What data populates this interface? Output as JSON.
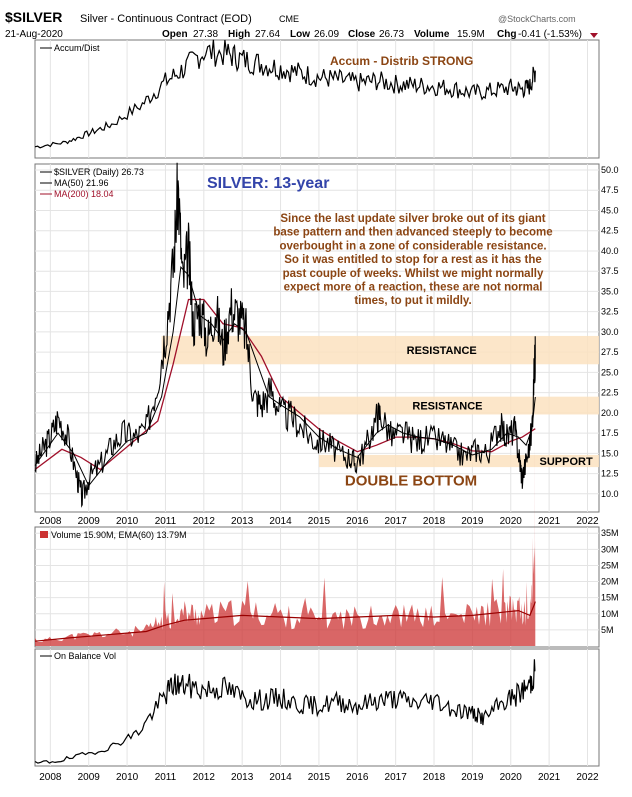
{
  "header": {
    "symbol": "$SILVER",
    "description": "Silver - Continuous Contract (EOD)",
    "exchange": "CME",
    "date": "21-Aug-2020",
    "open_label": "Open",
    "open": "27.38",
    "high_label": "High",
    "high": "27.64",
    "low_label": "Low",
    "low": "26.09",
    "close_label": "Close",
    "close": "26.73",
    "volume_label": "Volume",
    "volume": "15.9M",
    "chg_label": "Chg",
    "chg": "-0.41 (-1.53%)",
    "brand": "@StockCharts.com"
  },
  "colors": {
    "price": "#000000",
    "ma50": "#000000",
    "ma200": "#a0102a",
    "zone": "#fce2bf",
    "annotation": "#8b4513",
    "title": "#3344aa",
    "volume_fill": "#cc3333",
    "ema_line": "#990000",
    "grid": "#dddddd"
  },
  "chart_data": [
    {
      "type": "line",
      "panel": "accum_dist",
      "legend": "Accum/Dist",
      "annotation": "Accum - Distrib STRONG",
      "x": [
        2007.6,
        2008.4,
        2009.0,
        2009.6,
        2010.4,
        2011.0,
        2011.5,
        2012.0,
        2012.6,
        2013.0,
        2013.5,
        2014.0,
        2014.5,
        2015.0,
        2015.5,
        2016.0,
        2016.5,
        2017.0,
        2017.5,
        2018.0,
        2018.5,
        2019.0,
        2019.5,
        2020.0,
        2020.3,
        2020.5,
        2020.64
      ],
      "values": [
        10,
        14,
        22,
        30,
        48,
        68,
        80,
        95,
        93,
        88,
        84,
        80,
        76,
        72,
        70,
        67,
        69,
        66,
        65,
        64,
        62,
        58,
        60,
        63,
        61,
        64,
        78
      ]
    },
    {
      "type": "line",
      "panel": "price",
      "title": "SILVER: 13-year",
      "legend_price": "$SILVER (Daily) 26.73",
      "legend_ma50": "MA(50) 21.96",
      "legend_ma200": "MA(200) 18.04",
      "ylim": [
        8,
        50
      ],
      "y_ticks": [
        10.0,
        12.5,
        15.0,
        17.5,
        20.0,
        22.5,
        25.0,
        27.5,
        30.0,
        32.5,
        35.0,
        37.5,
        40.0,
        42.5,
        45.0,
        47.5,
        50.0
      ],
      "x_ticks": [
        "2008",
        "2009",
        "2010",
        "2011",
        "2012",
        "2013",
        "2014",
        "2015",
        "2016",
        "2017",
        "2018",
        "2019",
        "2020",
        "2021",
        "2022"
      ],
      "x": [
        2007.6,
        2007.8,
        2008.0,
        2008.2,
        2008.45,
        2008.7,
        2008.83,
        2009.0,
        2009.3,
        2009.6,
        2009.9,
        2010.2,
        2010.5,
        2010.8,
        2011.0,
        2011.2,
        2011.33,
        2011.45,
        2011.6,
        2011.72,
        2011.9,
        2012.1,
        2012.3,
        2012.5,
        2012.7,
        2012.9,
        2013.1,
        2013.3,
        2013.5,
        2013.75,
        2014.0,
        2014.3,
        2014.6,
        2014.9,
        2015.2,
        2015.5,
        2015.8,
        2015.95,
        2016.2,
        2016.5,
        2016.6,
        2016.9,
        2017.2,
        2017.5,
        2017.8,
        2018.2,
        2018.5,
        2018.8,
        2019.1,
        2019.4,
        2019.7,
        2019.9,
        2020.1,
        2020.22,
        2020.3,
        2020.45,
        2020.55,
        2020.62,
        2020.64
      ],
      "values": [
        13.5,
        15.5,
        17,
        19.5,
        17,
        12,
        9.5,
        12,
        13.5,
        16,
        17.5,
        17,
        18,
        24,
        30,
        38,
        48,
        36,
        40,
        31,
        33,
        29,
        33,
        28,
        33,
        32,
        30,
        22,
        21,
        23,
        20,
        19.5,
        18,
        16.5,
        16.5,
        15,
        14.5,
        13.8,
        15.5,
        19.5,
        20,
        17,
        17.5,
        16.5,
        16.8,
        16.6,
        15.5,
        14.6,
        15.5,
        15,
        18.5,
        17,
        18,
        14.5,
        12,
        15,
        18,
        26,
        26.73
      ]
    },
    {
      "type": "line",
      "panel": "price",
      "series_name": "MA(50)",
      "x": [
        2007.6,
        2008.2,
        2008.6,
        2009.0,
        2009.5,
        2010.0,
        2010.5,
        2010.9,
        2011.2,
        2011.4,
        2011.6,
        2011.9,
        2012.2,
        2012.5,
        2012.8,
        2013.1,
        2013.4,
        2013.7,
        2014.0,
        2014.5,
        2015.0,
        2015.5,
        2016.0,
        2016.5,
        2016.8,
        2017.2,
        2017.6,
        2018.0,
        2018.5,
        2019.0,
        2019.5,
        2019.9,
        2020.2,
        2020.4,
        2020.55,
        2020.64
      ],
      "values": [
        13.5,
        17.5,
        15,
        11,
        14,
        16.5,
        17.5,
        22,
        30,
        38,
        37,
        32,
        31,
        29,
        31,
        30,
        26,
        22,
        21,
        19.5,
        17,
        15.5,
        14.5,
        17.5,
        18.5,
        17.5,
        17,
        16.8,
        16,
        14.8,
        15.5,
        17.5,
        17,
        16,
        18,
        21.96
      ]
    },
    {
      "type": "line",
      "panel": "price",
      "series_name": "MA(200)",
      "x": [
        2007.6,
        2008.3,
        2008.8,
        2009.3,
        2009.8,
        2010.3,
        2010.8,
        2011.2,
        2011.6,
        2012.0,
        2012.5,
        2013.0,
        2013.5,
        2014.0,
        2014.5,
        2015.0,
        2015.5,
        2016.0,
        2016.5,
        2017.0,
        2017.5,
        2018.0,
        2018.5,
        2019.0,
        2019.5,
        2020.0,
        2020.3,
        2020.64
      ],
      "values": [
        13,
        15.5,
        14.5,
        13,
        15,
        17,
        19,
        26,
        34,
        34,
        31,
        30.5,
        27,
        22,
        20,
        18,
        16.5,
        15.2,
        16,
        17,
        17,
        16.8,
        16.2,
        15.3,
        15.2,
        16.5,
        17,
        18.04
      ]
    },
    {
      "type": "bar",
      "panel": "volume",
      "legend": "Volume 15.90M, EMA(60) 13.79M",
      "y_ticks": [
        "5M",
        "10M",
        "15M",
        "20M",
        "25M",
        "30M",
        "35M"
      ],
      "ylim": [
        0,
        36
      ],
      "x": [
        2007.6,
        2008.5,
        2009.5,
        2010.5,
        2011.0,
        2011.5,
        2012.0,
        2013.0,
        2014.0,
        2015.0,
        2016.0,
        2017.0,
        2018.0,
        2019.0,
        2019.8,
        2020.2,
        2020.5,
        2020.62,
        2020.64
      ],
      "values": [
        1.5,
        3,
        4,
        5,
        9,
        11,
        10,
        11,
        9.5,
        9,
        9.5,
        10,
        9.5,
        10,
        11.5,
        12,
        9,
        34,
        15.9
      ],
      "ema": [
        1.5,
        2.5,
        3.5,
        4.5,
        6.5,
        8,
        8.5,
        9.5,
        9,
        8.5,
        9,
        9.5,
        9,
        9.5,
        10.5,
        11,
        9.5,
        13,
        13.79
      ]
    },
    {
      "type": "line",
      "panel": "on_balance_volume",
      "legend": "On Balance Vol",
      "x": [
        2007.6,
        2008.5,
        2009.5,
        2010.3,
        2010.9,
        2011.2,
        2011.5,
        2012.0,
        2012.5,
        2013.0,
        2013.5,
        2014.0,
        2014.5,
        2015.0,
        2015.5,
        2016.0,
        2016.5,
        2017.0,
        2017.5,
        2018.0,
        2018.5,
        2019.0,
        2019.3,
        2019.8,
        2020.2,
        2020.5,
        2020.64
      ],
      "values": [
        0,
        5,
        15,
        30,
        60,
        75,
        74,
        70,
        72,
        63,
        60,
        62,
        56,
        55,
        59,
        55,
        60,
        62,
        57,
        61,
        52,
        48,
        43,
        58,
        66,
        75,
        88
      ]
    }
  ],
  "annotations": {
    "commentary": [
      "Since the last update silver broke out of its giant",
      "base pattern and then advanced steeply to become",
      "overbought in a zone of considerable resistance.",
      "So it was entitled to stop for a rest as it has the",
      "past couple of weeks. Whilst we might normally",
      "expect more of a reaction, these are not normal",
      "times, to put it mildly."
    ],
    "resistance_upper_label": "RESISTANCE",
    "resistance_upper_range": [
      26,
      29.5
    ],
    "resistance_lower_label": "RESISTANCE",
    "resistance_lower_range": [
      19.8,
      22
    ],
    "support_label": "SUPPORT",
    "support_range": [
      13.3,
      14.8
    ],
    "double_bottom_label": "DOUBLE BOTTOM"
  }
}
